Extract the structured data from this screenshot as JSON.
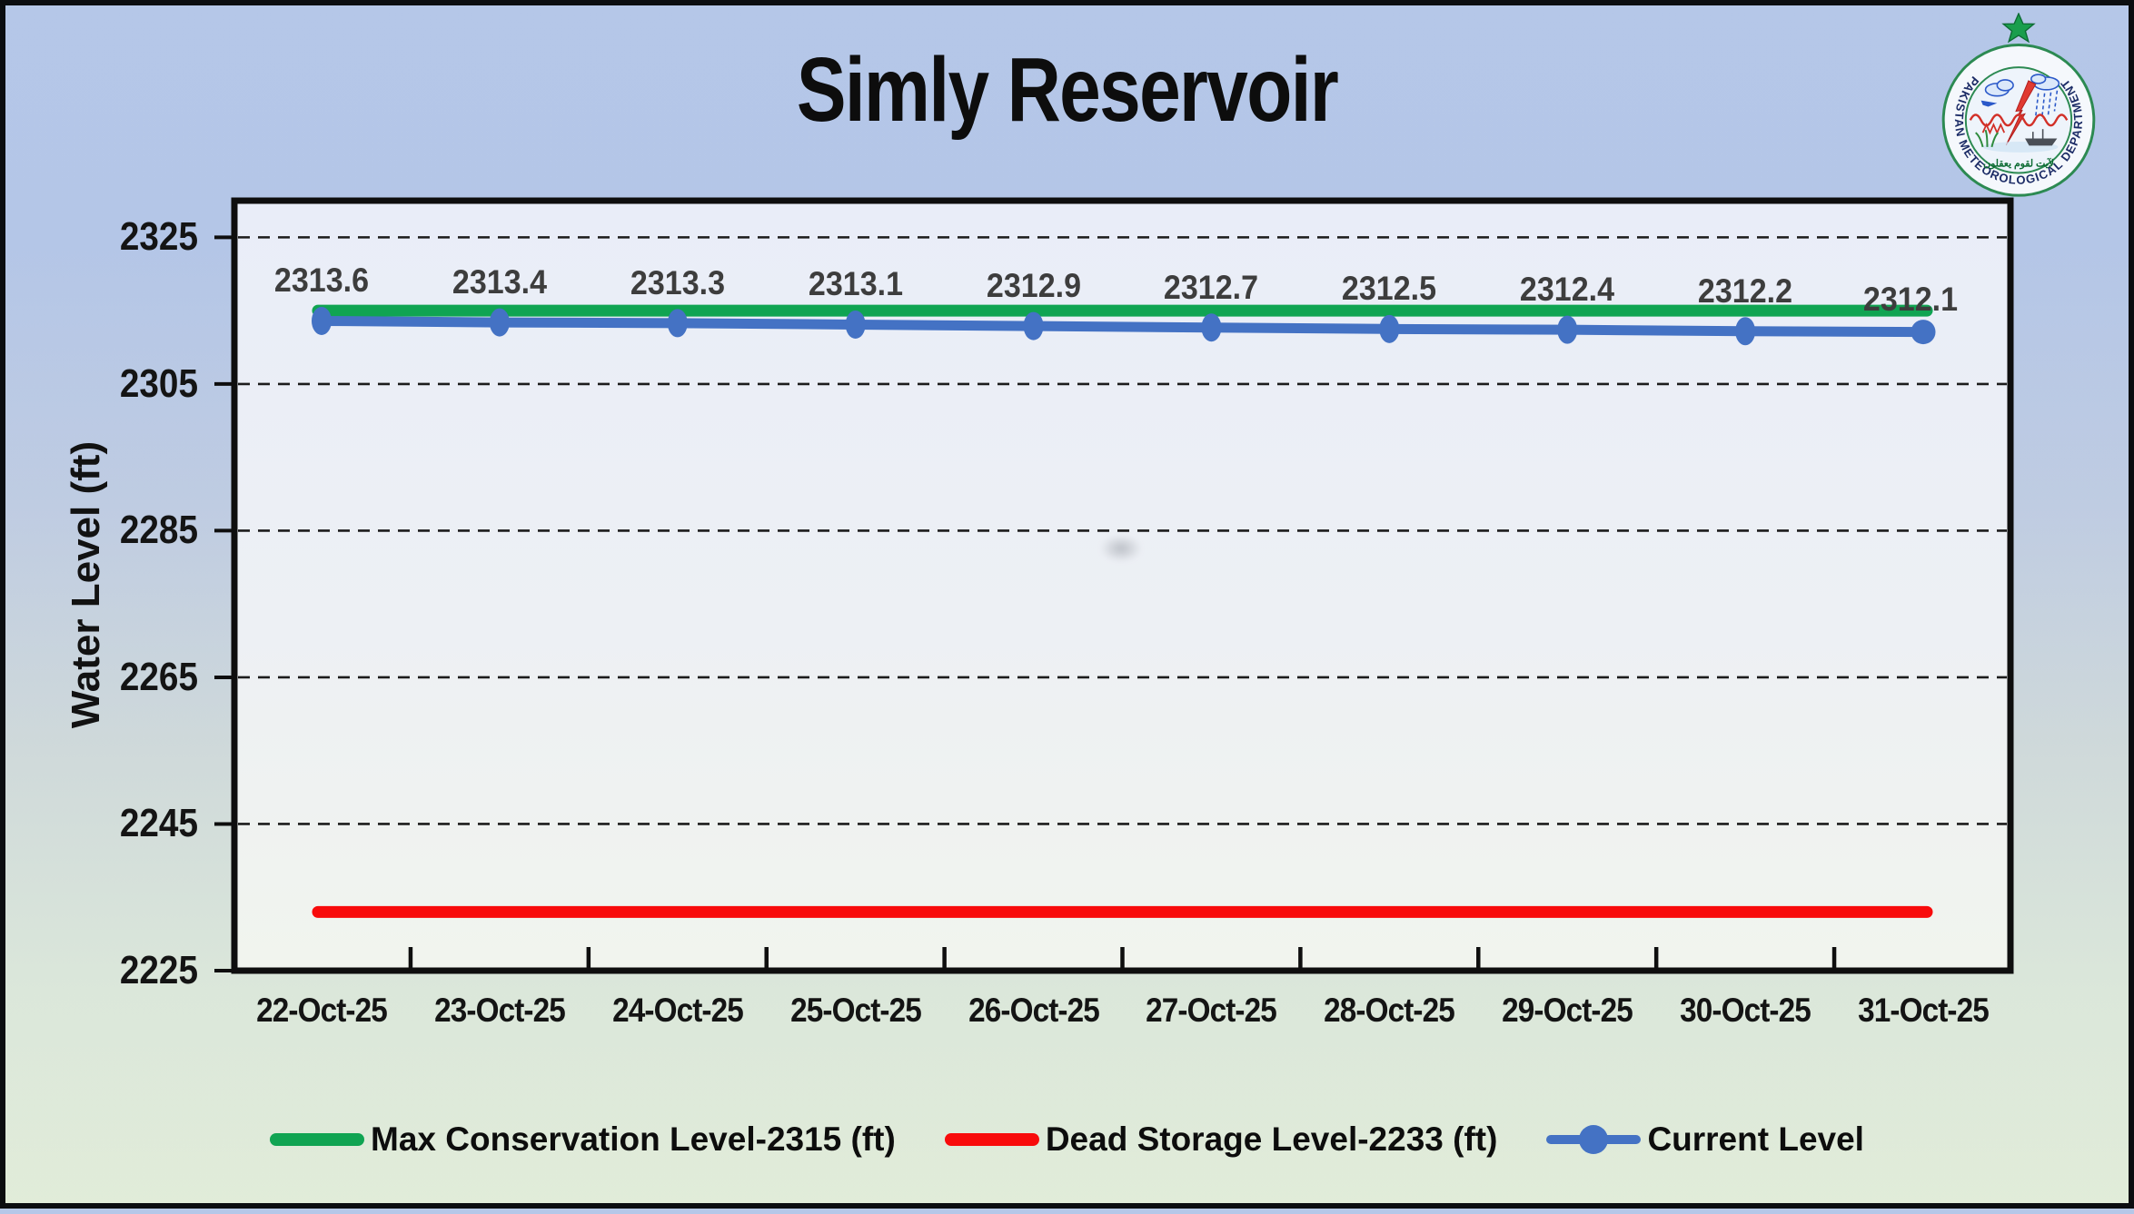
{
  "header": {
    "title": "Simly Reservoir"
  },
  "logo": {
    "arc_text": "PAKISTAN METEOROLOGICAL DEPARTMENT",
    "arabic_text": "لآيت لقوم يعقلون"
  },
  "y_axis": {
    "label": "Water Level (ft)"
  },
  "legend": {
    "items": [
      {
        "label": "Max Conservation Level-2315 (ft)",
        "color": "#10A452",
        "type": "line"
      },
      {
        "label": "Dead Storage Level-2233 (ft)",
        "color": "#F80B0B",
        "type": "line"
      },
      {
        "label": "Current Level",
        "color": "#4472C4",
        "type": "line-marker"
      }
    ]
  },
  "chart_data": {
    "type": "line",
    "title": "Simly Reservoir",
    "categories": [
      "22-Oct-25",
      "23-Oct-25",
      "24-Oct-25",
      "25-Oct-25",
      "26-Oct-25",
      "27-Oct-25",
      "28-Oct-25",
      "29-Oct-25",
      "30-Oct-25",
      "31-Oct-25"
    ],
    "series": [
      {
        "name": "Max Conservation Level-2315 (ft)",
        "kind": "reference",
        "value": 2315,
        "color": "#10A452"
      },
      {
        "name": "Dead Storage Level-2233 (ft)",
        "kind": "reference",
        "value": 2233,
        "color": "#F80B0B"
      },
      {
        "name": "Current Level",
        "kind": "line",
        "color": "#4472C4",
        "values": [
          2313.6,
          2313.4,
          2313.3,
          2313.1,
          2312.9,
          2312.7,
          2312.5,
          2312.4,
          2312.2,
          2312.1
        ],
        "data_labels": true
      }
    ],
    "xlabel": "",
    "ylabel": "Water Level (ft)",
    "ylim": [
      2225,
      2330
    ],
    "yticks": [
      2225,
      2245,
      2265,
      2285,
      2305,
      2325
    ],
    "grid": "horizontal-dashed",
    "grid_color": "#1c1c1c",
    "legend_position": "bottom",
    "axis_color": "#0e0e0e"
  }
}
